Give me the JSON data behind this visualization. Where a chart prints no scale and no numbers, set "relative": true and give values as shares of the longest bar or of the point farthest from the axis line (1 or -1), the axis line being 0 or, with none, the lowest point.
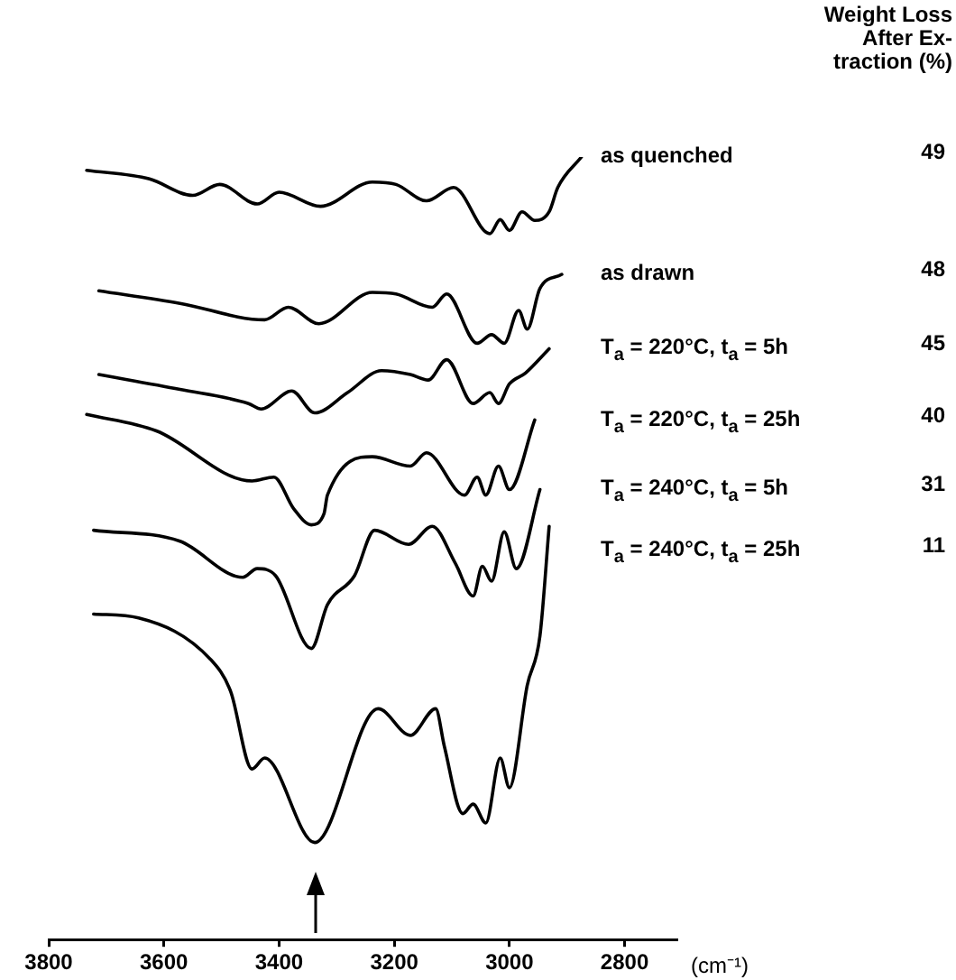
{
  "chart_data": {
    "type": "line",
    "relative": true,
    "xlabel": "(cm⁻¹)",
    "xlim": [
      3800,
      2710
    ],
    "xticks": [
      3800,
      3600,
      3400,
      3200,
      3000,
      2800
    ],
    "tick_labels": "x",
    "grid": false,
    "legend": false,
    "marker": "none",
    "line_style": "solid",
    "annotations": [
      "Weight Loss\nAfter  Ex-\ntraction (%)",
      "49",
      "48",
      "45",
      "40",
      "31",
      "11"
    ],
    "series": [
      {
        "name": "as quenched",
        "color": "#000000",
        "x": [
          3734,
          3625,
          3550,
          3503,
          3438,
          3400,
          3328,
          3238,
          3197,
          3144,
          3097,
          3034,
          3016,
          3000,
          2978,
          2956,
          2931,
          2916,
          2875
        ],
        "values": [
          0.983,
          0.972,
          0.951,
          0.965,
          0.94,
          0.955,
          0.937,
          0.968,
          0.965,
          0.944,
          0.961,
          0.902,
          0.92,
          0.906,
          0.93,
          0.919,
          0.93,
          0.961,
          1
        ]
      },
      {
        "name": "as drawn",
        "color": "#000000",
        "x": [
          3713,
          3572,
          3425,
          3384,
          3331,
          3238,
          3197,
          3134,
          3109,
          3056,
          3031,
          3009,
          2984,
          2969,
          2947,
          2909
        ],
        "values": [
          0.829,
          0.813,
          0.792,
          0.808,
          0.787,
          0.827,
          0.825,
          0.808,
          0.825,
          0.762,
          0.773,
          0.762,
          0.804,
          0.78,
          0.832,
          0.85
        ]
      },
      {
        "name": "T$_{a}$ = 220°C,  t$_{a}$ = 5h",
        "color": "#000000",
        "x": [
          3713,
          3572,
          3453,
          3431,
          3378,
          3338,
          3281,
          3222,
          3172,
          3141,
          3109,
          3063,
          3034,
          3019,
          3000,
          2972,
          2931
        ],
        "values": [
          0.722,
          0.703,
          0.685,
          0.678,
          0.701,
          0.673,
          0.699,
          0.727,
          0.722,
          0.715,
          0.741,
          0.685,
          0.699,
          0.685,
          0.71,
          0.724,
          0.755
        ]
      },
      {
        "name": "T$_{a}$ = 220°C,  t$_{a}$ = 25h",
        "color": "#000000",
        "x": [
          3734,
          3613,
          3447,
          3409,
          3375,
          3344,
          3322,
          3316,
          3238,
          3172,
          3144,
          3078,
          3056,
          3041,
          3019,
          3000,
          2956
        ],
        "values": [
          0.671,
          0.65,
          0.586,
          0.591,
          0.551,
          0.53,
          0.544,
          0.568,
          0.617,
          0.605,
          0.622,
          0.568,
          0.591,
          0.568,
          0.605,
          0.575,
          0.664
        ]
      },
      {
        "name": "T$_{a}$ = 240°C,  t$_{a}$ = 5h",
        "color": "#000000",
        "x": [
          3722,
          3572,
          3463,
          3438,
          3406,
          3344,
          3316,
          3269,
          3234,
          3175,
          3134,
          3094,
          3063,
          3047,
          3031,
          3009,
          2988,
          2947
        ],
        "values": [
          0.523,
          0.509,
          0.463,
          0.474,
          0.465,
          0.372,
          0.428,
          0.465,
          0.523,
          0.505,
          0.528,
          0.481,
          0.439,
          0.477,
          0.458,
          0.521,
          0.474,
          0.575
        ]
      },
      {
        "name": "T$_{a}$ = 240°C,  t$_{a}$ = 25h",
        "color": "#000000",
        "x": [
          3722,
          3644,
          3519,
          3484,
          3447,
          3425,
          3338,
          3228,
          3172,
          3128,
          3113,
          3081,
          3063,
          3041,
          3016,
          3000,
          2969,
          2947,
          2931
        ],
        "values": [
          0.416,
          0.411,
          0.358,
          0.317,
          0.218,
          0.232,
          0.124,
          0.295,
          0.261,
          0.295,
          0.247,
          0.161,
          0.173,
          0.149,
          0.232,
          0.194,
          0.325,
          0.388,
          0.528
        ]
      }
    ]
  }
}
